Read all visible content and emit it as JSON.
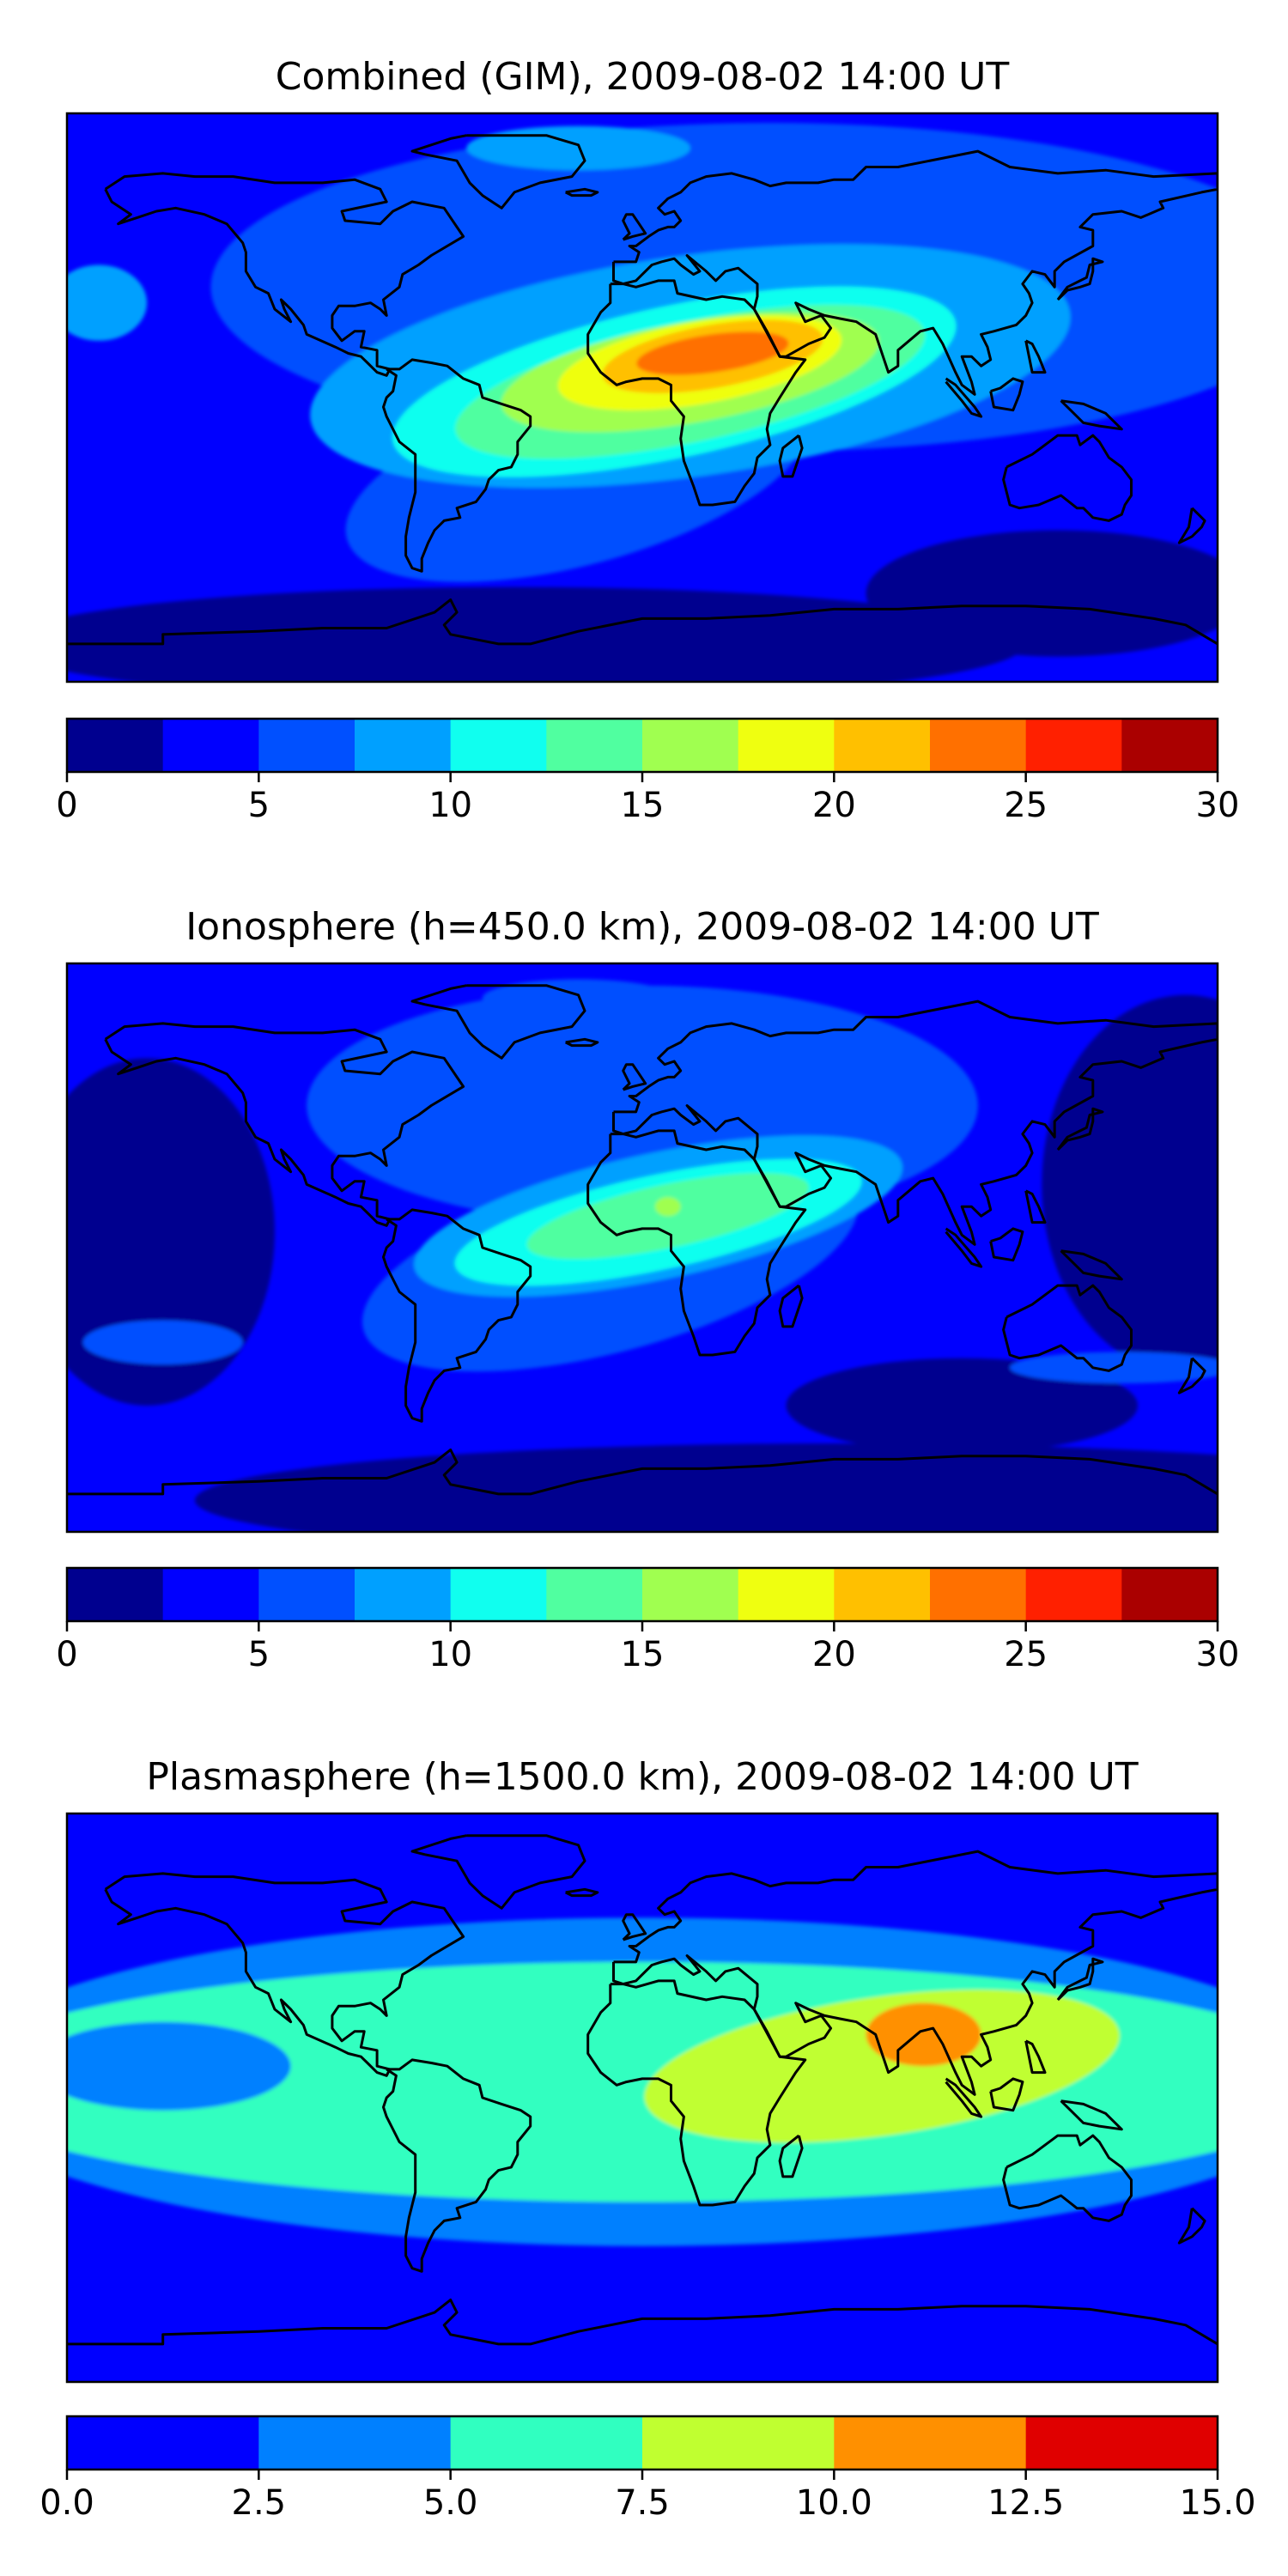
{
  "chart_data": [
    {
      "type": "heatmap",
      "title": "Combined (GIM), 2009-08-02 14:00 UT",
      "colorbar": {
        "levels": [
          0,
          2.5,
          5,
          7.5,
          10,
          12.5,
          15,
          17.5,
          20,
          22.5,
          25,
          27.5,
          30
        ],
        "colors": [
          "#00008f",
          "#0000ff",
          "#0050ff",
          "#00a0ff",
          "#10ffef",
          "#50ffa0",
          "#a0ff50",
          "#efff10",
          "#ffc000",
          "#ff7000",
          "#ff2000",
          "#aa0000"
        ],
        "tick_values": [
          0,
          5,
          10,
          15,
          20,
          25,
          30
        ],
        "tick_labels": [
          "0",
          "5",
          "10",
          "15",
          "20",
          "25",
          "30"
        ]
      },
      "background_level": 1,
      "features": [
        {
          "name": "north-band",
          "level": 2,
          "lon": 40,
          "lat": 35,
          "rlon": 175,
          "rlat": 52,
          "rot": 0
        },
        {
          "name": "south-atlantic-tongue",
          "level": 2,
          "lon": -20,
          "lat": -25,
          "rlon": 75,
          "rlat": 28,
          "rot": -15
        },
        {
          "name": "mid-band",
          "level": 3,
          "lon": 15,
          "lat": 10,
          "rlon": 120,
          "rlat": 35,
          "rot": -8
        },
        {
          "name": "arctic-patch",
          "level": 3,
          "lon": -20,
          "lat": 79,
          "rlon": 35,
          "rlat": 7,
          "rot": 0
        },
        {
          "name": "west-pacific-patch",
          "level": 3,
          "lon": -170,
          "lat": 30,
          "rlon": 15,
          "rlat": 12,
          "rot": 0
        },
        {
          "name": "cyan-core",
          "level": 4,
          "lon": 10,
          "lat": 5,
          "rlon": 90,
          "rlat": 24,
          "rot": -12
        },
        {
          "name": "mint-core",
          "level": 5,
          "lon": 15,
          "lat": 5,
          "rlon": 75,
          "rlat": 19,
          "rot": -12
        },
        {
          "name": "lime-core",
          "level": 6,
          "lon": 15,
          "lat": 8,
          "rlon": 60,
          "rlat": 16,
          "rot": -10
        },
        {
          "name": "yellow-core",
          "level": 7,
          "lon": 18,
          "lat": 11,
          "rlon": 45,
          "rlat": 13,
          "rot": -10
        },
        {
          "name": "orange-core",
          "level": 8,
          "lon": 22,
          "lat": 13,
          "rlon": 35,
          "rlat": 10,
          "rot": -10
        },
        {
          "name": "dark-orange-core",
          "level": 9,
          "lon": 22,
          "lat": 14,
          "rlon": 24,
          "rlat": 6,
          "rot": -8
        },
        {
          "name": "south-polar-low",
          "level": 0,
          "lon": -40,
          "lat": -78,
          "rlon": 160,
          "rlat": 18,
          "rot": 0
        },
        {
          "name": "south-indian-low",
          "level": 0,
          "lon": 130,
          "lat": -62,
          "rlon": 60,
          "rlat": 20,
          "rot": 0
        }
      ]
    },
    {
      "type": "heatmap",
      "title": "Ionosphere  (h=450.0 km), 2009-08-02 14:00 UT",
      "colorbar": {
        "levels": [
          0,
          2.5,
          5,
          7.5,
          10,
          12.5,
          15,
          17.5,
          20,
          22.5,
          25,
          27.5,
          30
        ],
        "colors": [
          "#00008f",
          "#0000ff",
          "#0050ff",
          "#00a0ff",
          "#10ffef",
          "#50ffa0",
          "#a0ff50",
          "#efff10",
          "#ffc000",
          "#ff7000",
          "#ff2000",
          "#aa0000"
        ],
        "tick_values": [
          0,
          5,
          10,
          15,
          20,
          25,
          30
        ],
        "tick_labels": [
          "0",
          "5",
          "10",
          "15",
          "20",
          "25",
          "30"
        ]
      },
      "background_level": 1,
      "features": [
        {
          "name": "west-pacific-low",
          "level": 0,
          "lon": -155,
          "lat": 5,
          "rlon": 40,
          "rlat": 55,
          "rot": 0
        },
        {
          "name": "east-pacific-low",
          "level": 0,
          "lon": 170,
          "lat": 20,
          "rlon": 45,
          "rlat": 60,
          "rot": 0
        },
        {
          "name": "south-low",
          "level": 0,
          "lon": 60,
          "lat": -80,
          "rlon": 200,
          "rlat": 18,
          "rot": 0
        },
        {
          "name": "indian-low",
          "level": 0,
          "lon": 100,
          "lat": -50,
          "rlon": 55,
          "rlat": 15,
          "rot": 0
        },
        {
          "name": "north-band",
          "level": 2,
          "lon": 0,
          "lat": 45,
          "rlon": 105,
          "rlat": 38,
          "rot": 0
        },
        {
          "name": "atlantic-tongue",
          "level": 2,
          "lon": -10,
          "lat": -5,
          "rlon": 80,
          "rlat": 28,
          "rot": -15
        },
        {
          "name": "arctic-patch",
          "level": 2,
          "lon": -20,
          "lat": 79,
          "rlon": 30,
          "rlat": 6,
          "rot": 0
        },
        {
          "name": "pacific-patch",
          "level": 2,
          "lon": -150,
          "lat": -30,
          "rlon": 25,
          "rlat": 7,
          "rot": 0
        },
        {
          "name": "australia-patch",
          "level": 2,
          "lon": 150,
          "lat": -38,
          "rlon": 35,
          "rlat": 5,
          "rot": 0
        },
        {
          "name": "mid-band",
          "level": 3,
          "lon": 5,
          "lat": 10,
          "rlon": 78,
          "rlat": 20,
          "rot": -12
        },
        {
          "name": "cyan-core",
          "level": 4,
          "lon": 5,
          "lat": 8,
          "rlon": 65,
          "rlat": 15,
          "rot": -12
        },
        {
          "name": "mint-core",
          "level": 5,
          "lon": 8,
          "lat": 10,
          "rlon": 45,
          "rlat": 10,
          "rot": -12
        },
        {
          "name": "lime-spot",
          "level": 6,
          "lon": 8,
          "lat": 13,
          "rlon": 4,
          "rlat": 3,
          "rot": 0
        }
      ]
    },
    {
      "type": "heatmap",
      "title": "Plasmasphere (h=1500.0 km), 2009-08-02 14:00 UT",
      "colorbar": {
        "levels": [
          0,
          2.5,
          5,
          7.5,
          10,
          12.5,
          15
        ],
        "colors": [
          "#0000ff",
          "#0080ff",
          "#30ffc0",
          "#c0ff30",
          "#ff9000",
          "#e00000"
        ],
        "tick_values": [
          0,
          2.5,
          5,
          7.5,
          10,
          12.5,
          15
        ],
        "tick_labels": [
          "0.0",
          "2.5",
          "5.0",
          "7.5",
          "10.0",
          "12.5",
          "15.0"
        ]
      },
      "background_level": 0,
      "features": [
        {
          "name": "equatorial-band",
          "level": 1,
          "lon": 0,
          "lat": 5,
          "rlon": 220,
          "rlat": 52,
          "rot": 0
        },
        {
          "name": "equatorial-core",
          "level": 2,
          "lon": 0,
          "lat": 5,
          "rlon": 220,
          "rlat": 38,
          "rot": 0
        },
        {
          "name": "yellow-core",
          "level": 3,
          "lon": 75,
          "lat": 10,
          "rlon": 75,
          "rlat": 22,
          "rot": -8
        },
        {
          "name": "orange-core",
          "level": 4,
          "lon": 88,
          "lat": 20,
          "rlon": 18,
          "rlat": 10,
          "rot": 0
        },
        {
          "name": "pacific-band",
          "level": 1,
          "lon": -150,
          "lat": 10,
          "rlon": 40,
          "rlat": 14,
          "rot": 0
        }
      ]
    }
  ]
}
